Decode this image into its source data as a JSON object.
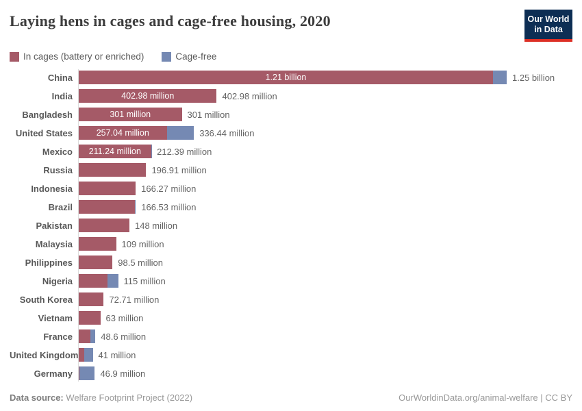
{
  "header": {
    "title": "Laying hens in cages and cage-free housing, 2020",
    "logo_line1": "Our World",
    "logo_line2": "in Data"
  },
  "colors": {
    "cages": "#a55a67",
    "cage_free": "#7589b3",
    "logo_bg": "#0d2e54",
    "logo_accent": "#dc2f25"
  },
  "legend": [
    {
      "label": "In cages (battery or enriched)",
      "color": "#a55a67"
    },
    {
      "label": "Cage-free",
      "color": "#7589b3"
    }
  ],
  "chart_data": {
    "type": "bar",
    "orientation": "horizontal",
    "stacked": true,
    "title": "Laying hens in cages and cage-free housing, 2020",
    "unit": "millions of hens",
    "xlim_millions": [
      0,
      1250
    ],
    "grid": false,
    "legend_position": "top-left",
    "series_names": [
      "In cages (battery or enriched)",
      "Cage-free"
    ],
    "rows": [
      {
        "country": "China",
        "cages_millions": 1210,
        "cage_free_millions": 40,
        "bar_label": "1.21 billion",
        "total_label": "1.25 billion"
      },
      {
        "country": "India",
        "cages_millions": 402.98,
        "cage_free_millions": 0,
        "bar_label": "402.98 million",
        "total_label": "402.98 million"
      },
      {
        "country": "Bangladesh",
        "cages_millions": 301,
        "cage_free_millions": 0,
        "bar_label": "301 million",
        "total_label": "301 million"
      },
      {
        "country": "United States",
        "cages_millions": 257.04,
        "cage_free_millions": 79.4,
        "bar_label": "257.04 million",
        "total_label": "336.44 million"
      },
      {
        "country": "Mexico",
        "cages_millions": 211.24,
        "cage_free_millions": 1.15,
        "bar_label": "211.24 million",
        "total_label": "212.39 million"
      },
      {
        "country": "Russia",
        "cages_millions": 196.91,
        "cage_free_millions": 0,
        "bar_label": "",
        "total_label": "196.91 million"
      },
      {
        "country": "Indonesia",
        "cages_millions": 166.27,
        "cage_free_millions": 0,
        "bar_label": "",
        "total_label": "166.27 million"
      },
      {
        "country": "Brazil",
        "cages_millions": 163,
        "cage_free_millions": 3.53,
        "bar_label": "",
        "total_label": "166.53 million"
      },
      {
        "country": "Pakistan",
        "cages_millions": 148,
        "cage_free_millions": 0,
        "bar_label": "",
        "total_label": "148 million"
      },
      {
        "country": "Malaysia",
        "cages_millions": 109,
        "cage_free_millions": 0,
        "bar_label": "",
        "total_label": "109 million"
      },
      {
        "country": "Philippines",
        "cages_millions": 98.5,
        "cage_free_millions": 0,
        "bar_label": "",
        "total_label": "98.5 million"
      },
      {
        "country": "Nigeria",
        "cages_millions": 83,
        "cage_free_millions": 32,
        "bar_label": "",
        "total_label": "115 million"
      },
      {
        "country": "South Korea",
        "cages_millions": 72.71,
        "cage_free_millions": 0,
        "bar_label": "",
        "total_label": "72.71 million"
      },
      {
        "country": "Vietnam",
        "cages_millions": 63,
        "cage_free_millions": 0,
        "bar_label": "",
        "total_label": "63 million"
      },
      {
        "country": "France",
        "cages_millions": 33,
        "cage_free_millions": 15.6,
        "bar_label": "",
        "total_label": "48.6 million"
      },
      {
        "country": "United Kingdom",
        "cages_millions": 16,
        "cage_free_millions": 25,
        "bar_label": "",
        "total_label": "41 million"
      },
      {
        "country": "Germany",
        "cages_millions": 2.9,
        "cage_free_millions": 44,
        "bar_label": "",
        "total_label": "46.9 million"
      }
    ]
  },
  "footer": {
    "source_prefix": "Data source:",
    "source_name": " Welfare Footprint Project (2022)",
    "link": "OurWorldinData.org/animal-welfare | CC BY"
  }
}
